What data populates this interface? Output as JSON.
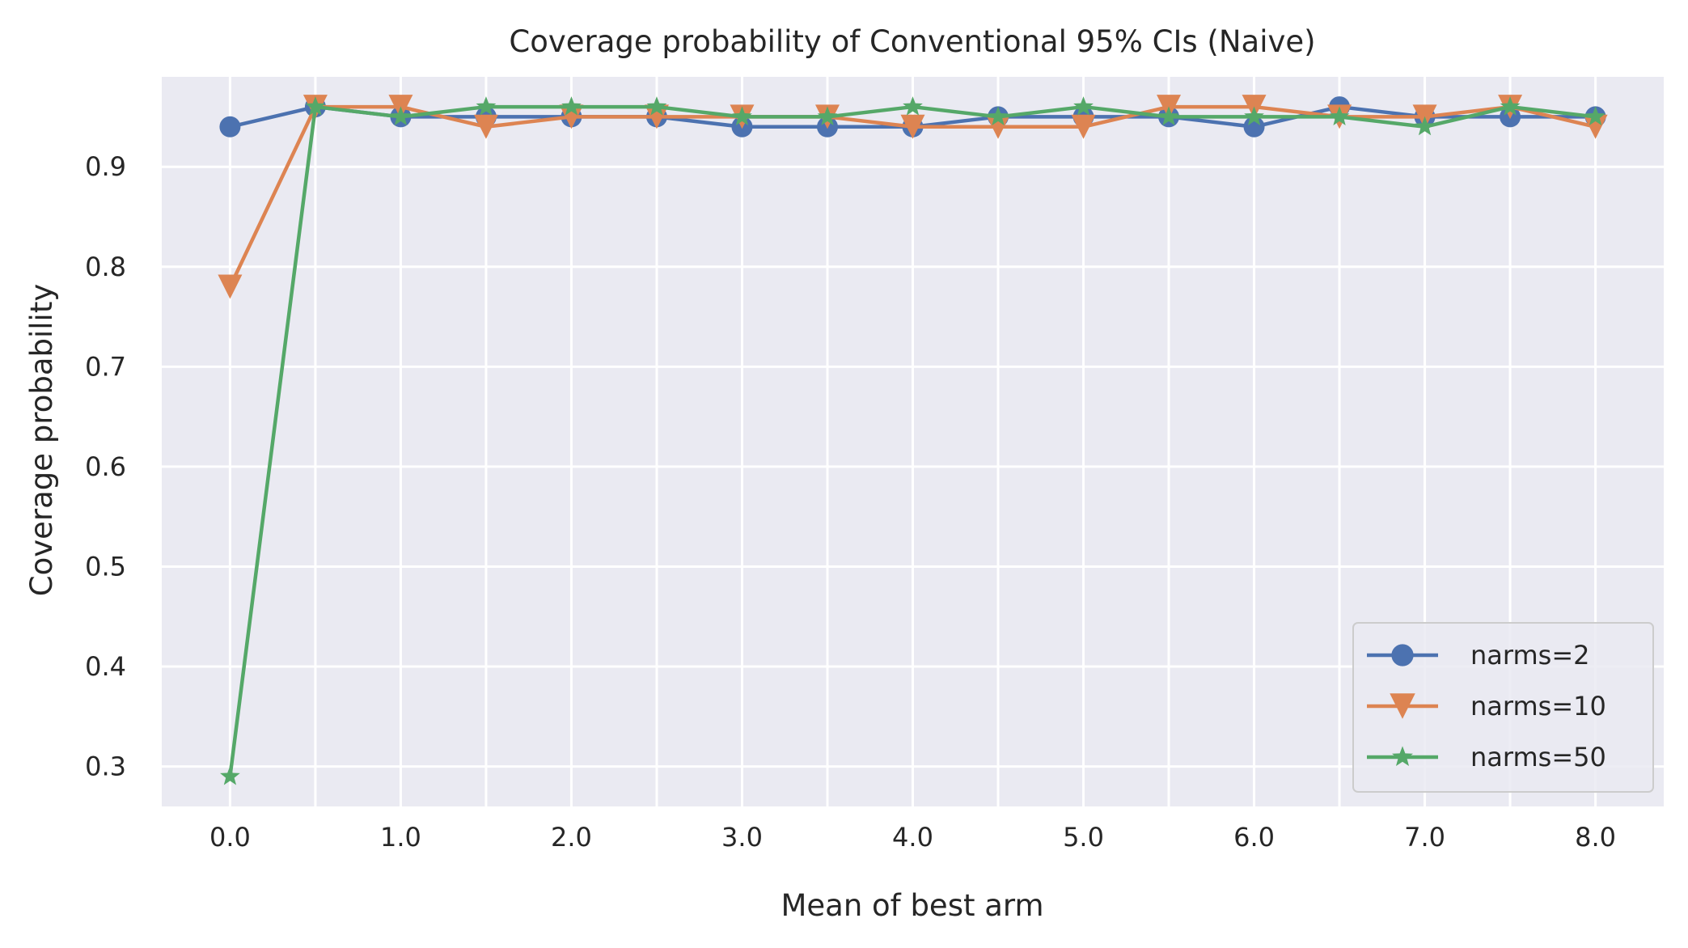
{
  "chart_data": {
    "type": "line",
    "title": "Coverage probability of Conventional 95% CIs (Naive)",
    "xlabel": "Mean of best arm",
    "ylabel": "Coverage probability",
    "x": [
      0.0,
      0.5,
      1.0,
      1.5,
      2.0,
      2.5,
      3.0,
      3.5,
      4.0,
      4.5,
      5.0,
      5.5,
      6.0,
      6.5,
      7.0,
      7.5,
      8.0
    ],
    "xlim": [
      -0.4,
      8.4
    ],
    "ylim": [
      0.26,
      0.99
    ],
    "xticks": [
      0,
      1,
      2,
      3,
      4,
      5,
      6,
      7,
      8
    ],
    "xtick_labels": [
      "0.0",
      "1.0",
      "2.0",
      "3.0",
      "4.0",
      "5.0",
      "6.0",
      "7.0",
      "8.0"
    ],
    "yticks": [
      0.3,
      0.4,
      0.5,
      0.6,
      0.7,
      0.8,
      0.9
    ],
    "ytick_labels": [
      "0.3",
      "0.4",
      "0.5",
      "0.6",
      "0.7",
      "0.8",
      "0.9"
    ],
    "grid": true,
    "legend_position": "lower-right",
    "series": [
      {
        "name": "narms=2",
        "marker": "circle",
        "color": "#4c72b0",
        "values": [
          0.94,
          0.96,
          0.95,
          0.95,
          0.95,
          0.95,
          0.94,
          0.94,
          0.94,
          0.95,
          0.95,
          0.95,
          0.94,
          0.96,
          0.95,
          0.95,
          0.95
        ]
      },
      {
        "name": "narms=10",
        "marker": "triangle-down",
        "color": "#dd8452",
        "values": [
          0.78,
          0.96,
          0.96,
          0.94,
          0.95,
          0.95,
          0.95,
          0.95,
          0.94,
          0.94,
          0.94,
          0.96,
          0.96,
          0.95,
          0.95,
          0.96,
          0.94
        ]
      },
      {
        "name": "narms=50",
        "marker": "star",
        "color": "#55a868",
        "values": [
          0.29,
          0.96,
          0.95,
          0.96,
          0.96,
          0.96,
          0.95,
          0.95,
          0.96,
          0.95,
          0.96,
          0.95,
          0.95,
          0.95,
          0.94,
          0.96,
          0.95
        ]
      }
    ]
  },
  "colors": {
    "plot_background": "#eaeaf2",
    "grid": "#ffffff"
  }
}
